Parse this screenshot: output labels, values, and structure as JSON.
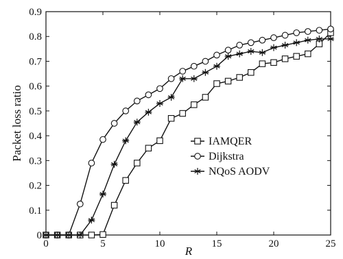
{
  "chart_data": {
    "type": "line",
    "title": "",
    "xlabel": "R",
    "ylabel": "Packet loss ratio",
    "xlim": [
      0,
      25
    ],
    "ylim": [
      0,
      0.9
    ],
    "xticks": [
      0,
      5,
      10,
      15,
      20,
      25
    ],
    "yticks": [
      0,
      0.1,
      0.2,
      0.3,
      0.4,
      0.5,
      0.6,
      0.7,
      0.8,
      0.9
    ],
    "xtick_labels": [
      "0",
      "5",
      "10",
      "15",
      "20",
      "25"
    ],
    "ytick_labels": [
      "0",
      "0.1",
      "0.2",
      "0.3",
      "0.4",
      "0.5",
      "0.6",
      "0.7",
      "0.8",
      "0.9"
    ],
    "grid": false,
    "legend_position": "center-right",
    "x": [
      0,
      1,
      2,
      3,
      4,
      5,
      6,
      7,
      8,
      9,
      10,
      11,
      12,
      13,
      14,
      15,
      16,
      17,
      18,
      19,
      20,
      21,
      22,
      23,
      24,
      25
    ],
    "series": [
      {
        "name": "IAMQER",
        "marker": "square",
        "values": [
          0,
          0,
          0,
          0,
          0,
          0.002,
          0.12,
          0.22,
          0.29,
          0.35,
          0.38,
          0.47,
          0.49,
          0.525,
          0.555,
          0.61,
          0.62,
          0.635,
          0.655,
          0.69,
          0.695,
          0.71,
          0.72,
          0.73,
          0.77,
          0.815
        ]
      },
      {
        "name": "Dijkstra",
        "marker": "circle",
        "values": [
          0,
          0,
          0,
          0.125,
          0.29,
          0.385,
          0.45,
          0.5,
          0.54,
          0.565,
          0.59,
          0.63,
          0.66,
          0.68,
          0.7,
          0.725,
          0.745,
          0.765,
          0.775,
          0.785,
          0.795,
          0.805,
          0.815,
          0.82,
          0.825,
          0.83
        ]
      },
      {
        "name": "NQoS AODV",
        "marker": "star",
        "values": [
          0,
          0,
          0,
          0,
          0.06,
          0.165,
          0.285,
          0.38,
          0.455,
          0.495,
          0.53,
          0.555,
          0.63,
          0.63,
          0.655,
          0.68,
          0.72,
          0.73,
          0.74,
          0.735,
          0.755,
          0.765,
          0.775,
          0.785,
          0.79,
          0.79
        ]
      }
    ]
  }
}
